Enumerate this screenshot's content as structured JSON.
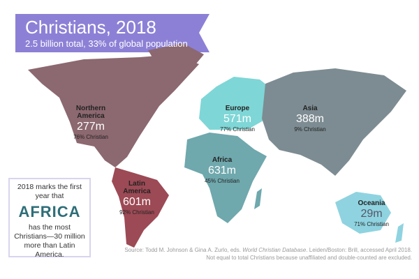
{
  "header": {
    "title": "Christians, 2018",
    "subtitle": "2.5 billion total, 33% of global population"
  },
  "regions": [
    {
      "name": "Northern America",
      "count": "277m",
      "share": "76% Christian"
    },
    {
      "name": "Latin America",
      "count": "601m",
      "share": "92% Christian"
    },
    {
      "name": "Europe",
      "count": "571m",
      "share": "77% Christian"
    },
    {
      "name": "Africa",
      "count": "631m",
      "share": "45% Christian"
    },
    {
      "name": "Asia",
      "count": "388m",
      "share": "9% Christian"
    },
    {
      "name": "Oceania",
      "count": "29m",
      "share": "71% Christian"
    }
  ],
  "callout": {
    "lead": "2018 marks the first year that",
    "highlight": "AFRICA",
    "body": "has the most Christians—30 million more than Latin America."
  },
  "source": {
    "line1_start": "Source: Todd M. Johnson & Gina A. Zurlo, eds.",
    "line1_title": "World Christian Database",
    "line1_end": ". Leiden/Boston: Brill, accessed April 2018.",
    "line2": "Not equal to total Christians because unaffiliated and double-counted are excluded."
  }
}
